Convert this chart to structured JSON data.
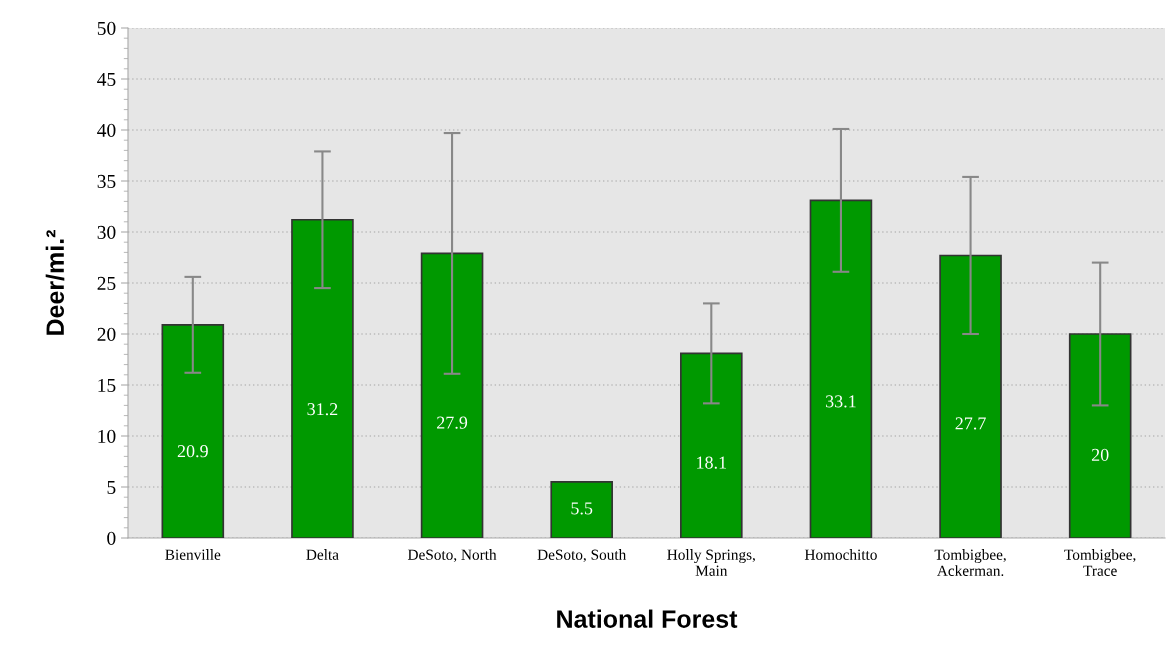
{
  "chart_data": {
    "type": "bar",
    "xlabel": "National Forest",
    "ylabel": "Deer/mi.²",
    "categories": [
      "Bienville",
      "Delta",
      "DeSoto, North",
      "DeSoto, South",
      "Holly Springs,\nMain",
      "Homochitto",
      "Tombigbee,\nAckerman.",
      "Tombigbee,\nTrace"
    ],
    "values": [
      20.9,
      31.2,
      27.9,
      5.5,
      18.1,
      33.1,
      27.7,
      20
    ],
    "errors": [
      4.7,
      6.7,
      11.8,
      null,
      4.9,
      7.0,
      7.7,
      7.0
    ],
    "color": "#009900",
    "ylim": [
      0,
      50
    ],
    "yticks": [
      0,
      5,
      10,
      15,
      20,
      25,
      30,
      35,
      40,
      45,
      50
    ],
    "grid": "y",
    "data_labels": true
  }
}
